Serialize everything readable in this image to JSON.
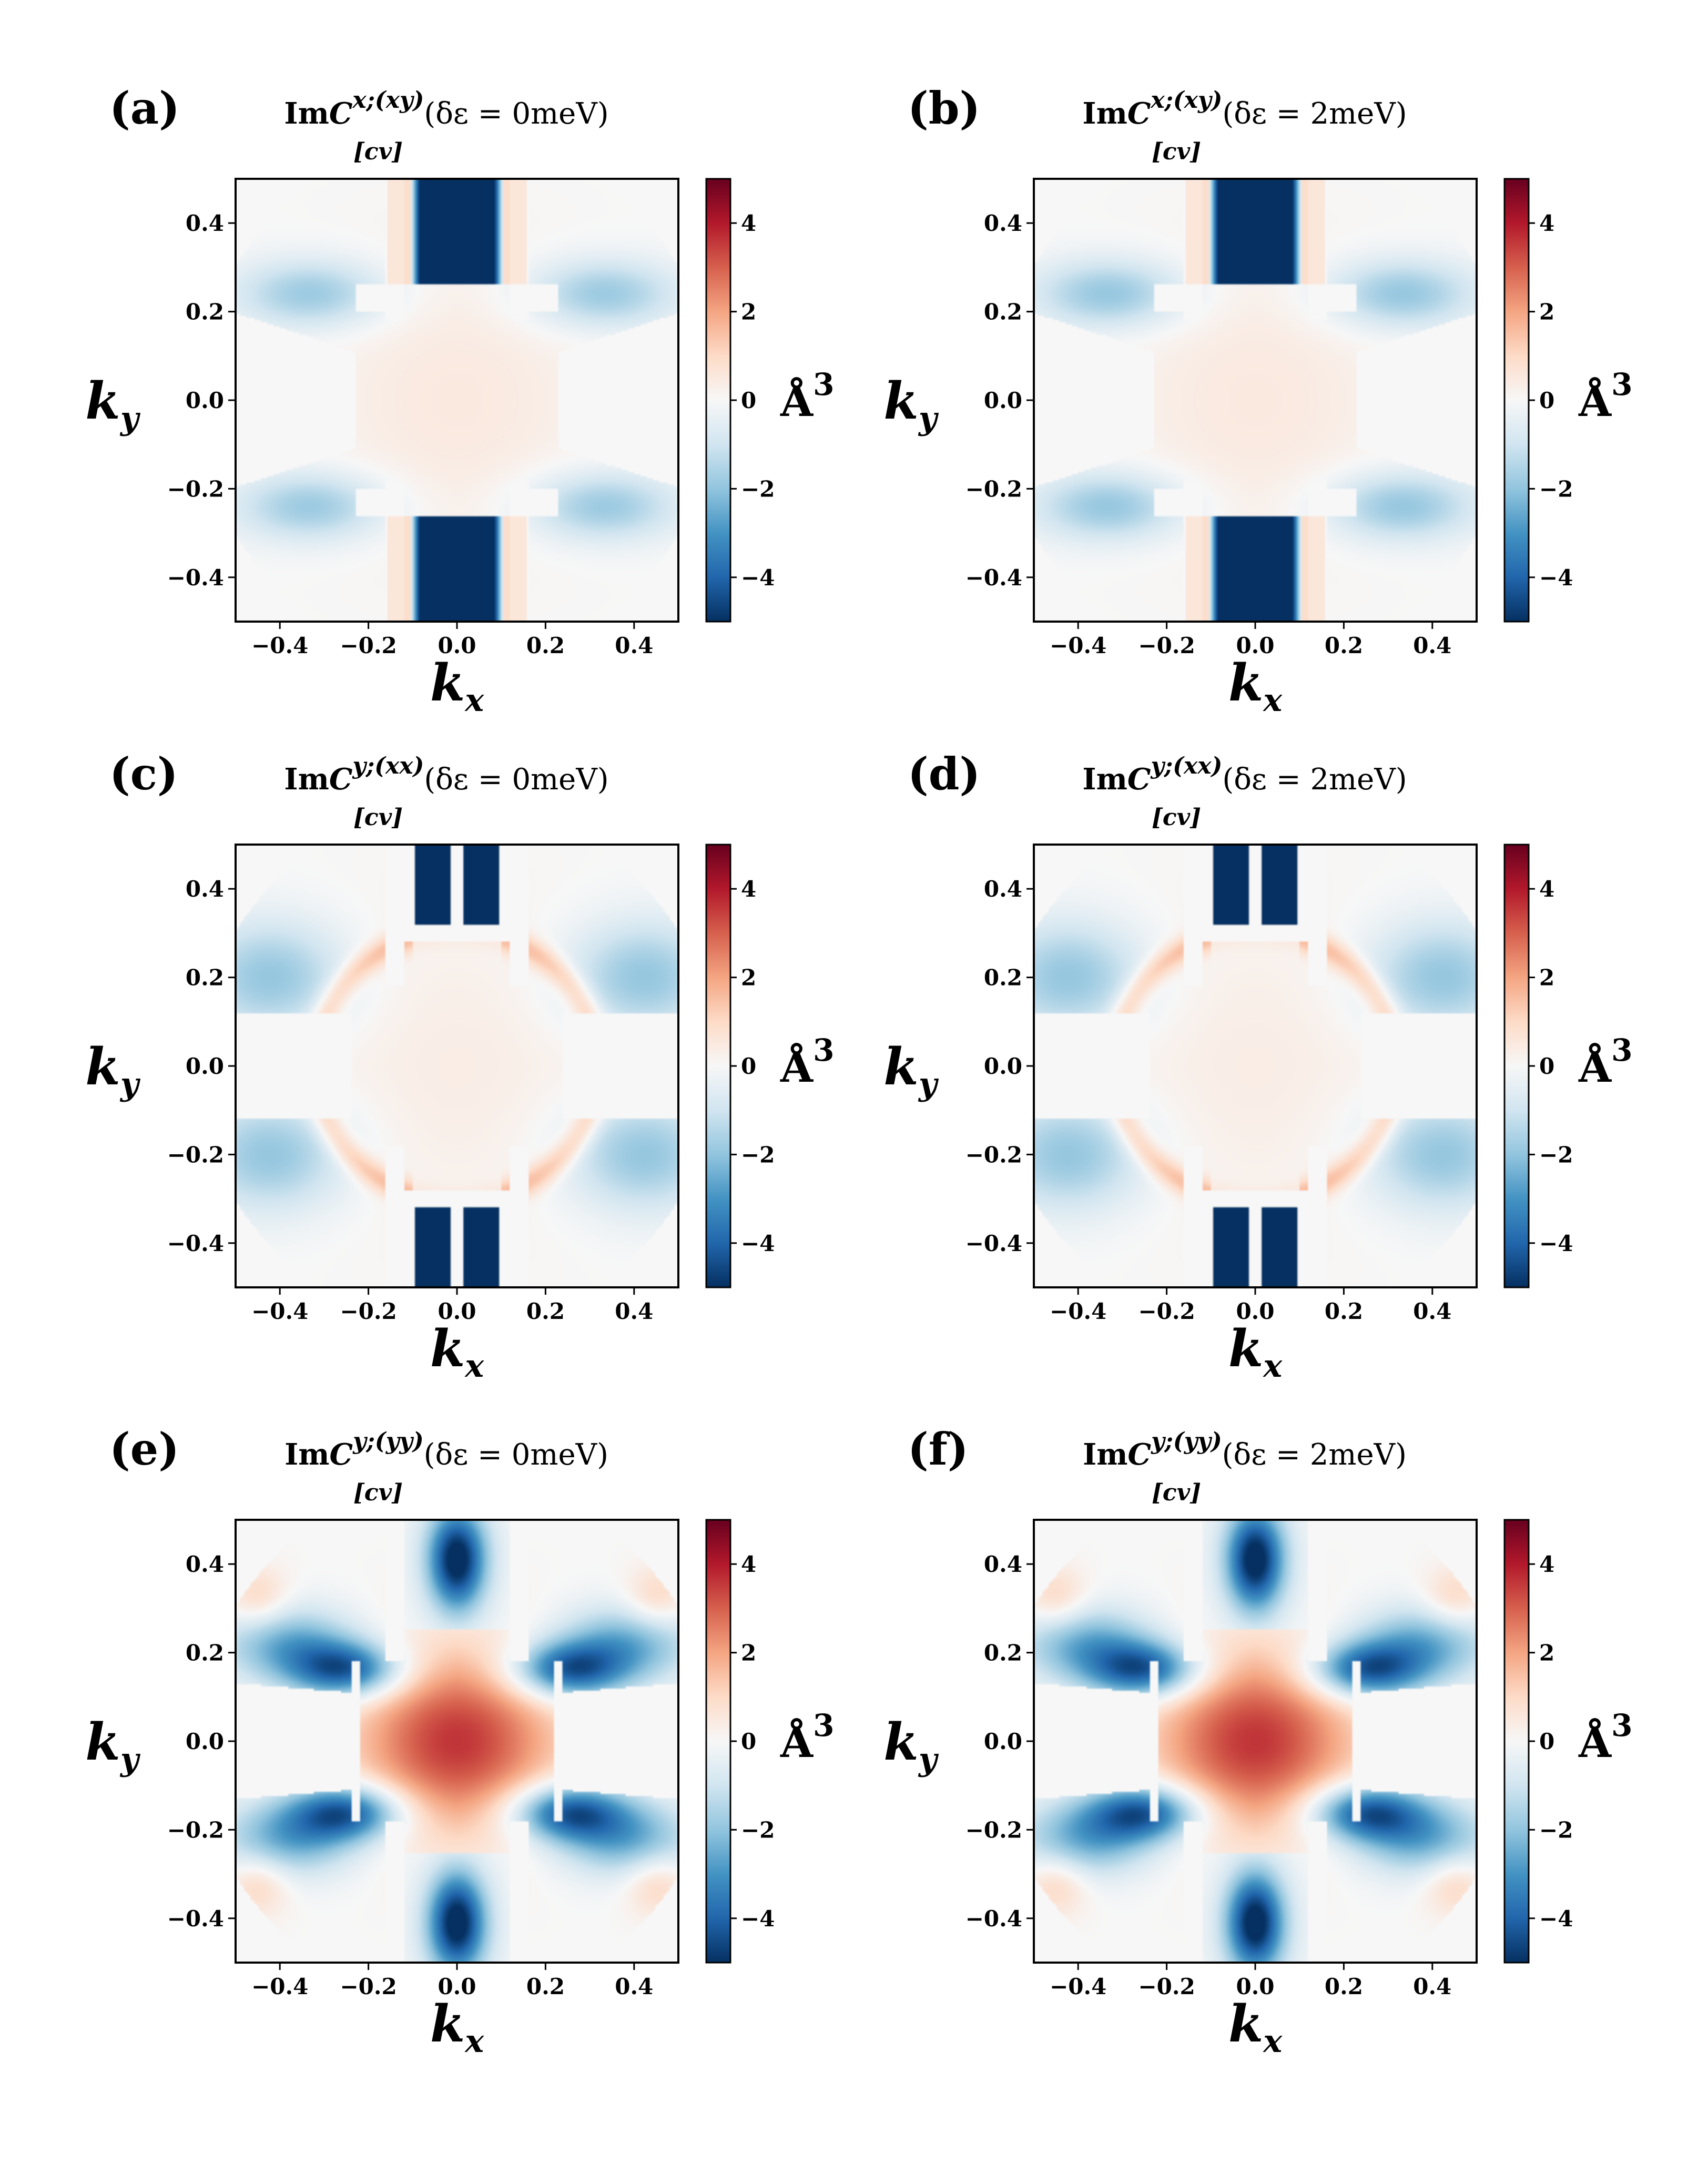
{
  "colors": {
    "cmap": [
      "#053061",
      "#2166ac",
      "#4393c3",
      "#92c5de",
      "#d1e5f0",
      "#f7f7f7",
      "#fddbc7",
      "#f4a582",
      "#d6604d",
      "#b2182b",
      "#67001f"
    ],
    "background": "#f7f7f7"
  },
  "chart_data": [
    {
      "type": "heatmap",
      "panel_label": "(a)",
      "title": {
        "prefix": "Im",
        "symbol": "C",
        "superscript": "x;(xy)",
        "subscript": "[cv]",
        "condition": "(δε = 0meV)"
      },
      "component": "xxy",
      "delta_eps_meV": 0,
      "xlabel": "k",
      "xlabel_sub": "x",
      "ylabel": "k",
      "ylabel_sub": "y",
      "xlim": [
        -0.5,
        0.5
      ],
      "ylim": [
        -0.5,
        0.5
      ],
      "xticks": [
        "−0.4",
        "−0.2",
        "0.0",
        "0.2",
        "0.4"
      ],
      "yticks": [
        "0.4",
        "0.2",
        "0.0",
        "−0.2",
        "−0.4"
      ],
      "colorbar": {
        "range": [
          -5,
          5
        ],
        "ticks": [
          "4",
          "2",
          "0",
          "−2",
          "−4"
        ],
        "unit": "Å",
        "unit_power": "3"
      }
    },
    {
      "type": "heatmap",
      "panel_label": "(b)",
      "title": {
        "prefix": "Im",
        "symbol": "C",
        "superscript": "x;(xy)",
        "subscript": "[cv]",
        "condition": "(δε = 2meV)"
      },
      "component": "xxy",
      "delta_eps_meV": 2,
      "xlabel": "k",
      "xlabel_sub": "x",
      "ylabel": "k",
      "ylabel_sub": "y",
      "xlim": [
        -0.5,
        0.5
      ],
      "ylim": [
        -0.5,
        0.5
      ],
      "xticks": [
        "−0.4",
        "−0.2",
        "0.0",
        "0.2",
        "0.4"
      ],
      "yticks": [
        "0.4",
        "0.2",
        "0.0",
        "−0.2",
        "−0.4"
      ],
      "colorbar": {
        "range": [
          -5,
          5
        ],
        "ticks": [
          "4",
          "2",
          "0",
          "−2",
          "−4"
        ],
        "unit": "Å",
        "unit_power": "3"
      }
    },
    {
      "type": "heatmap",
      "panel_label": "(c)",
      "title": {
        "prefix": "Im",
        "symbol": "C",
        "superscript": "y;(xx)",
        "subscript": "[cv]",
        "condition": "(δε = 0meV)"
      },
      "component": "yxx",
      "delta_eps_meV": 0,
      "xlabel": "k",
      "xlabel_sub": "x",
      "ylabel": "k",
      "ylabel_sub": "y",
      "xlim": [
        -0.5,
        0.5
      ],
      "ylim": [
        -0.5,
        0.5
      ],
      "xticks": [
        "−0.4",
        "−0.2",
        "0.0",
        "0.2",
        "0.4"
      ],
      "yticks": [
        "0.4",
        "0.2",
        "0.0",
        "−0.2",
        "−0.4"
      ],
      "colorbar": {
        "range": [
          -5,
          5
        ],
        "ticks": [
          "4",
          "2",
          "0",
          "−2",
          "−4"
        ],
        "unit": "Å",
        "unit_power": "3"
      }
    },
    {
      "type": "heatmap",
      "panel_label": "(d)",
      "title": {
        "prefix": "Im",
        "symbol": "C",
        "superscript": "y;(xx)",
        "subscript": "[cv]",
        "condition": "(δε = 2meV)"
      },
      "component": "yxx",
      "delta_eps_meV": 2,
      "xlabel": "k",
      "xlabel_sub": "x",
      "ylabel": "k",
      "ylabel_sub": "y",
      "xlim": [
        -0.5,
        0.5
      ],
      "ylim": [
        -0.5,
        0.5
      ],
      "xticks": [
        "−0.4",
        "−0.2",
        "0.0",
        "0.2",
        "0.4"
      ],
      "yticks": [
        "0.4",
        "0.2",
        "0.0",
        "−0.2",
        "−0.4"
      ],
      "colorbar": {
        "range": [
          -5,
          5
        ],
        "ticks": [
          "4",
          "2",
          "0",
          "−2",
          "−4"
        ],
        "unit": "Å",
        "unit_power": "3"
      }
    },
    {
      "type": "heatmap",
      "panel_label": "(e)",
      "title": {
        "prefix": "Im",
        "symbol": "C",
        "superscript": "y;(yy)",
        "subscript": "[cv]",
        "condition": "(δε = 0meV)"
      },
      "component": "yyy",
      "delta_eps_meV": 0,
      "xlabel": "k",
      "xlabel_sub": "x",
      "ylabel": "k",
      "ylabel_sub": "y",
      "xlim": [
        -0.5,
        0.5
      ],
      "ylim": [
        -0.5,
        0.5
      ],
      "xticks": [
        "−0.4",
        "−0.2",
        "0.0",
        "0.2",
        "0.4"
      ],
      "yticks": [
        "0.4",
        "0.2",
        "0.0",
        "−0.2",
        "−0.4"
      ],
      "colorbar": {
        "range": [
          -5,
          5
        ],
        "ticks": [
          "4",
          "2",
          "0",
          "−2",
          "−4"
        ],
        "unit": "Å",
        "unit_power": "3"
      }
    },
    {
      "type": "heatmap",
      "panel_label": "(f)",
      "title": {
        "prefix": "Im",
        "symbol": "C",
        "superscript": "y;(yy)",
        "subscript": "[cv]",
        "condition": "(δε = 2meV)"
      },
      "component": "yyy",
      "delta_eps_meV": 2,
      "xlabel": "k",
      "xlabel_sub": "x",
      "ylabel": "k",
      "ylabel_sub": "y",
      "xlim": [
        -0.5,
        0.5
      ],
      "ylim": [
        -0.5,
        0.5
      ],
      "xticks": [
        "−0.4",
        "−0.2",
        "0.0",
        "0.2",
        "0.4"
      ],
      "yticks": [
        "0.4",
        "0.2",
        "0.0",
        "−0.2",
        "−0.4"
      ],
      "colorbar": {
        "range": [
          -5,
          5
        ],
        "ticks": [
          "4",
          "2",
          "0",
          "−2",
          "−4"
        ],
        "unit": "Å",
        "unit_power": "3"
      }
    }
  ]
}
